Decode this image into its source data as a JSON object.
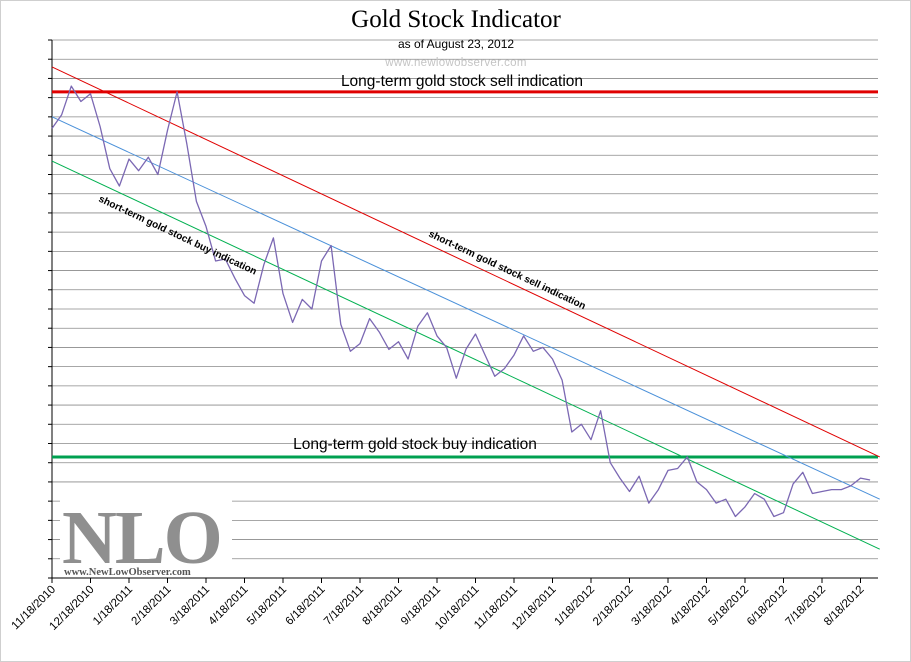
{
  "chart_data": {
    "type": "line",
    "title": "Gold Stock Indicator",
    "subtitle": "as of August 23, 2012",
    "source_watermark": "www.newlowobserver.com",
    "xlabel": "",
    "ylabel": "",
    "grid": true,
    "y_axis_labels_shown": false,
    "ylim": [
      0,
      28
    ],
    "x_tick_labels": [
      "11/18/2010",
      "12/18/2010",
      "1/18/2011",
      "2/18/2011",
      "3/18/2011",
      "4/18/2011",
      "5/18/2011",
      "6/18/2011",
      "7/18/2011",
      "8/18/2011",
      "9/18/2011",
      "10/18/2011",
      "11/18/2011",
      "12/18/2011",
      "1/18/2012",
      "2/18/2012",
      "3/18/2012",
      "4/18/2012",
      "5/18/2012",
      "6/18/2012",
      "7/18/2012",
      "8/18/2012"
    ],
    "series": [
      {
        "name": "Gold Stock Indicator",
        "color": "#7b68b3",
        "x": [
          0,
          0.25,
          0.5,
          0.75,
          1,
          1.25,
          1.5,
          1.75,
          2,
          2.25,
          2.5,
          2.75,
          3,
          3.25,
          3.5,
          3.75,
          4,
          4.25,
          4.5,
          4.75,
          5,
          5.25,
          5.5,
          5.75,
          6,
          6.25,
          6.5,
          6.75,
          7,
          7.25,
          7.5,
          7.75,
          8,
          8.25,
          8.5,
          8.75,
          9,
          9.25,
          9.5,
          9.75,
          10,
          10.25,
          10.5,
          10.75,
          11,
          11.25,
          11.5,
          11.75,
          12,
          12.25,
          12.5,
          12.75,
          13,
          13.25,
          13.5,
          13.75,
          14,
          14.25,
          14.5,
          14.75,
          15,
          15.25,
          15.5,
          15.75,
          16,
          16.25,
          16.5,
          16.75,
          17,
          17.25,
          17.5,
          17.75,
          18,
          18.25,
          18.5,
          18.75,
          19,
          19.25,
          19.5,
          19.75,
          20,
          20.25,
          20.5,
          20.75,
          21,
          21.25
        ],
        "values": [
          23.4,
          24.1,
          25.6,
          24.8,
          25.2,
          23.5,
          21.3,
          20.4,
          21.8,
          21.2,
          21.9,
          21.0,
          23.3,
          25.3,
          22.6,
          19.6,
          18.3,
          16.5,
          16.6,
          15.6,
          14.7,
          14.3,
          16.3,
          17.7,
          14.8,
          13.3,
          14.5,
          14.0,
          16.5,
          17.3,
          13.2,
          11.8,
          12.2,
          13.5,
          12.8,
          11.9,
          12.3,
          11.4,
          13.1,
          13.8,
          12.6,
          12.0,
          10.4,
          11.9,
          12.7,
          11.6,
          10.5,
          10.9,
          11.6,
          12.6,
          11.8,
          12.0,
          11.4,
          10.3,
          7.6,
          8.0,
          7.2,
          8.7,
          6.0,
          5.2,
          4.5,
          5.3,
          3.9,
          4.6,
          5.6,
          5.7,
          6.3,
          5.0,
          4.6,
          3.9,
          4.1,
          3.2,
          3.7,
          4.4,
          4.1,
          3.2,
          3.4,
          4.9,
          5.5,
          4.4,
          4.5,
          4.6,
          4.6,
          4.8,
          5.2,
          5.1
        ]
      }
    ],
    "reference_lines": [
      {
        "name": "long-term-sell",
        "label": "Long-term gold stock sell indication",
        "type": "horizontal",
        "y": 25.3,
        "color": "#e00000"
      },
      {
        "name": "long-term-buy",
        "label": "Long-term gold stock buy indication",
        "type": "horizontal",
        "y": 6.3,
        "color": "#00a050"
      },
      {
        "name": "short-term-sell",
        "label": "short-term gold stock sell indication",
        "type": "trend",
        "x": [
          0,
          21.5
        ],
        "y": [
          26.6,
          6.3
        ],
        "color": "#e00000"
      },
      {
        "name": "mid-trend",
        "label": "",
        "type": "trend",
        "x": [
          0,
          21.5
        ],
        "y": [
          24.0,
          4.1
        ],
        "color": "#4a90d9"
      },
      {
        "name": "short-term-buy",
        "label": "short-term gold stock buy indication",
        "type": "trend",
        "x": [
          0,
          21.5
        ],
        "y": [
          21.7,
          1.5
        ],
        "color": "#00b050"
      }
    ]
  },
  "logo": {
    "text": "NLO",
    "url": "www.NewLowObserver.com"
  }
}
